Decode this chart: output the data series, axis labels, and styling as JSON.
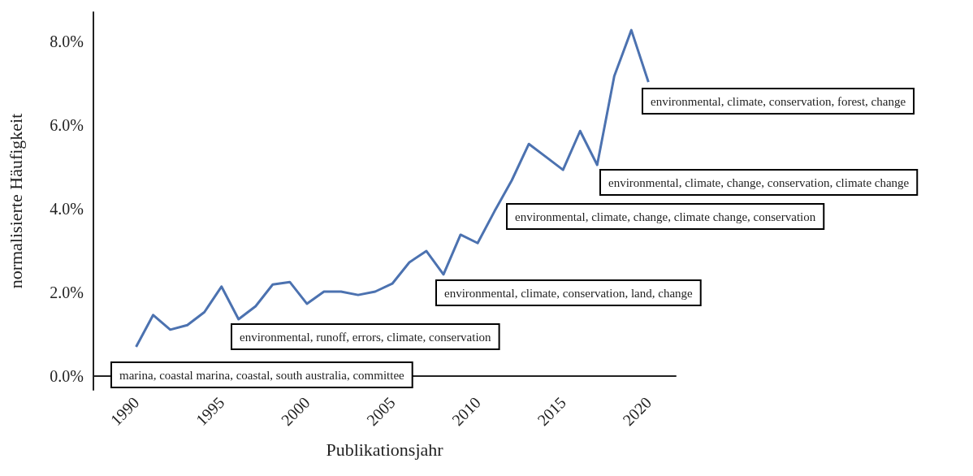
{
  "chart_data": {
    "type": "line",
    "xlabel": "Publikationsjahr",
    "ylabel": "normalisierte Häufigkeit",
    "x": [
      1990,
      1991,
      1992,
      1993,
      1994,
      1995,
      1996,
      1997,
      1998,
      1999,
      2000,
      2001,
      2002,
      2003,
      2004,
      2005,
      2006,
      2007,
      2008,
      2009,
      2010,
      2011,
      2012,
      2013,
      2014,
      2015,
      2016,
      2017,
      2018,
      2019,
      2020
    ],
    "series": [
      {
        "color": "#4c72b0",
        "values": [
          0.7,
          1.46,
          1.11,
          1.22,
          1.53,
          2.14,
          1.36,
          1.67,
          2.19,
          2.25,
          1.73,
          2.02,
          2.02,
          1.94,
          2.02,
          2.21,
          2.72,
          2.99,
          2.43,
          3.38,
          3.18,
          3.95,
          4.68,
          5.55,
          5.24,
          4.93,
          5.86,
          5.05,
          7.17,
          8.27,
          7.03
        ]
      }
    ],
    "xlim": [
      1987.5,
      2021.6
    ],
    "xticks": [
      1990,
      1995,
      2000,
      2005,
      2010,
      2015,
      2020
    ],
    "ylim": [
      -0.33,
      8.7
    ],
    "yticks": [
      {
        "value": 0,
        "label": "0.0%"
      },
      {
        "value": 2,
        "label": "2.0%"
      },
      {
        "value": 4,
        "label": "4.0%"
      },
      {
        "value": 6,
        "label": "6.0%"
      },
      {
        "value": 8,
        "label": "8.0%"
      }
    ],
    "grid": false,
    "annotations": [
      "marina, coastal marina, coastal, south australia, committee",
      "environmental, runoff, errors, climate, conservation",
      "environmental, climate, conservation, land, change",
      "environmental, climate, change, climate change, conservation",
      "environmental, climate, change, conservation, climate change",
      "environmental, climate, conservation, forest, change"
    ]
  }
}
